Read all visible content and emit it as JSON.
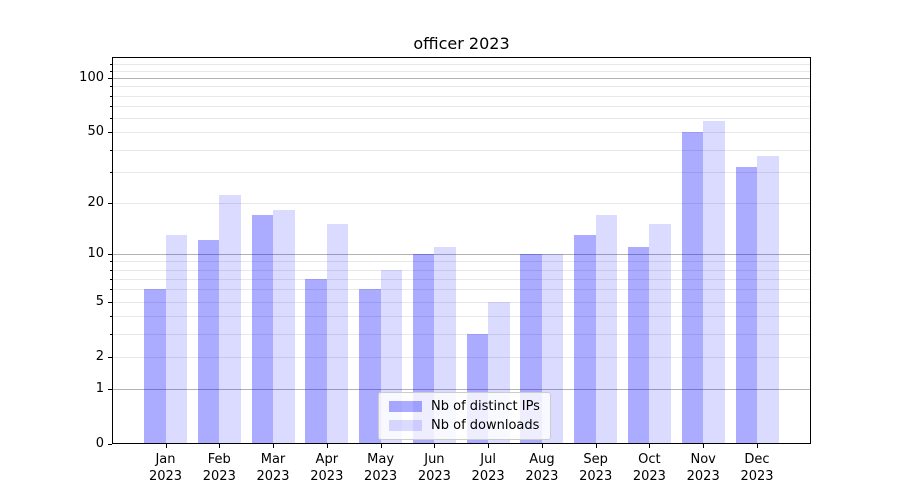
{
  "chart_data": {
    "type": "bar",
    "title": "officer 2023",
    "categories": [
      "Jan",
      "Feb",
      "Mar",
      "Apr",
      "May",
      "Jun",
      "Jul",
      "Aug",
      "Sep",
      "Oct",
      "Nov",
      "Dec"
    ],
    "year_label": "2023",
    "series": [
      {
        "name": "Nb of distinct IPs",
        "color": "rgba(0,0,255,0.33)",
        "values": [
          6,
          12,
          17,
          7,
          6,
          10,
          3,
          10,
          13,
          11,
          50,
          32
        ]
      },
      {
        "name": "Nb of downloads",
        "color": "rgba(0,0,255,0.14)",
        "values": [
          13,
          22,
          18,
          15,
          8,
          11,
          5,
          10,
          17,
          15,
          58,
          37
        ]
      }
    ],
    "y_axis": {
      "scale": "log1p",
      "tick_labels": [
        100,
        50,
        20,
        10,
        5,
        2,
        1,
        0
      ],
      "major_gridlines": [
        1,
        10,
        100
      ],
      "minor_gridlines": [
        2,
        3,
        4,
        5,
        6,
        7,
        8,
        9,
        20,
        30,
        40,
        50,
        60,
        70,
        80,
        90,
        110,
        120
      ],
      "ylim": [
        0,
        130
      ]
    },
    "grid": true,
    "legend": {
      "position": "lower-center"
    },
    "colors": {
      "bar_dark": "rgba(0,0,255,0.33)",
      "bar_light": "rgba(0,0,255,0.14)",
      "major_grid": "#b2b2b2",
      "minor_grid": "#e8e8e8",
      "spine": "#000000",
      "text": "#000000"
    }
  }
}
